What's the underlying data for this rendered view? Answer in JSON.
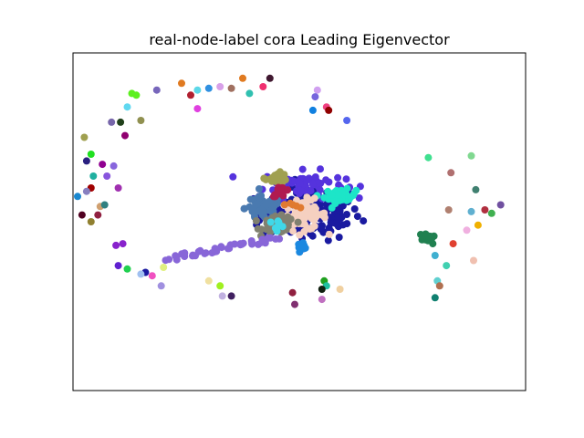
{
  "chart_data": {
    "type": "scatter",
    "title": "real-node-label cora Leading Eigenvector",
    "xlabel": "",
    "ylabel": "",
    "axes_ticks": "none",
    "grid": false,
    "legend": "none",
    "xlim": [
      -1.0,
      1.0
    ],
    "ylim": [
      -1.0,
      1.0
    ],
    "palette": {
      "navy": "#1a1aa0",
      "violet_blue": "#5533dd",
      "turquoise": "#1de5c8",
      "peach": "#f5d0c0",
      "steel_blue": "#4a7ab0",
      "gray": "#808070",
      "olive": "#a0a050",
      "lavender": "#8866d8",
      "crimson": "#b01a50",
      "orange": "#e07a30",
      "cyan": "#40d8e8",
      "azure": "#1a88e0"
    },
    "core_clusters": [
      {
        "color": "#1a1aa0",
        "center": [
          0.05,
          0.05
        ],
        "spread": [
          0.22,
          0.16
        ],
        "count": 170
      },
      {
        "color": "#5533dd",
        "center": [
          0.02,
          0.22
        ],
        "spread": [
          0.18,
          0.08
        ],
        "count": 60
      },
      {
        "color": "#1de5c8",
        "center": [
          0.18,
          0.15
        ],
        "spread": [
          0.07,
          0.04
        ],
        "count": 45
      },
      {
        "color": "#f5d0c0",
        "center": [
          0.02,
          0.04
        ],
        "spread": [
          0.1,
          0.09
        ],
        "count": 80
      },
      {
        "color": "#4a7ab0",
        "center": [
          -0.16,
          0.08
        ],
        "spread": [
          0.08,
          0.07
        ],
        "count": 60
      },
      {
        "color": "#808070",
        "center": [
          -0.09,
          -0.02
        ],
        "spread": [
          0.07,
          0.05
        ],
        "count": 55
      },
      {
        "color": "#a0a050",
        "center": [
          -0.1,
          0.26
        ],
        "spread": [
          0.05,
          0.03
        ],
        "count": 25
      },
      {
        "color": "#b01a50",
        "center": [
          -0.08,
          0.18
        ],
        "spread": [
          0.04,
          0.03
        ],
        "count": 15
      },
      {
        "color": "#40d8e8",
        "center": [
          -0.1,
          -0.02
        ],
        "spread": [
          0.04,
          0.03
        ],
        "count": 10
      },
      {
        "color": "#1a88e0",
        "center": [
          0.01,
          -0.14
        ],
        "spread": [
          0.03,
          0.02
        ],
        "count": 8
      },
      {
        "color": "#e07a30",
        "center": [
          -0.03,
          0.1
        ],
        "spread": [
          0.03,
          0.02
        ],
        "count": 5
      }
    ],
    "tail": {
      "color": "#8866d8",
      "from": [
        -0.58,
        -0.22
      ],
      "to": [
        -0.1,
        -0.1
      ],
      "count": 40
    },
    "outliers": [
      {
        "x": -0.74,
        "y": 0.76,
        "color": "#5cf01e"
      },
      {
        "x": -0.72,
        "y": 0.75,
        "color": "#5cf01e"
      },
      {
        "x": -0.63,
        "y": 0.78,
        "color": "#7766bb"
      },
      {
        "x": -0.52,
        "y": 0.82,
        "color": "#e07a20"
      },
      {
        "x": -0.48,
        "y": 0.75,
        "color": "#b02030"
      },
      {
        "x": -0.45,
        "y": 0.78,
        "color": "#5cd8e8"
      },
      {
        "x": -0.4,
        "y": 0.79,
        "color": "#3090e0"
      },
      {
        "x": -0.35,
        "y": 0.8,
        "color": "#d8a0e8"
      },
      {
        "x": -0.3,
        "y": 0.79,
        "color": "#a07060"
      },
      {
        "x": -0.25,
        "y": 0.85,
        "color": "#e07a20"
      },
      {
        "x": -0.22,
        "y": 0.76,
        "color": "#30c0b0"
      },
      {
        "x": -0.16,
        "y": 0.8,
        "color": "#f03070"
      },
      {
        "x": -0.13,
        "y": 0.85,
        "color": "#401830"
      },
      {
        "x": -0.45,
        "y": 0.67,
        "color": "#e040e0"
      },
      {
        "x": 0.08,
        "y": 0.78,
        "color": "#d0a0f0"
      },
      {
        "x": 0.07,
        "y": 0.74,
        "color": "#7766dd"
      },
      {
        "x": 0.12,
        "y": 0.68,
        "color": "#f04080"
      },
      {
        "x": 0.13,
        "y": 0.66,
        "color": "#900000"
      },
      {
        "x": 0.06,
        "y": 0.66,
        "color": "#1080e0"
      },
      {
        "x": 0.21,
        "y": 0.6,
        "color": "#5566ee"
      },
      {
        "x": -0.83,
        "y": 0.59,
        "color": "#7766aa"
      },
      {
        "x": -0.79,
        "y": 0.59,
        "color": "#20401a"
      },
      {
        "x": -0.76,
        "y": 0.68,
        "color": "#60d8f0"
      },
      {
        "x": -0.7,
        "y": 0.6,
        "color": "#909050"
      },
      {
        "x": -0.77,
        "y": 0.51,
        "color": "#900070"
      },
      {
        "x": -0.95,
        "y": 0.5,
        "color": "#a0a050"
      },
      {
        "x": -0.94,
        "y": 0.36,
        "color": "#2a2080"
      },
      {
        "x": -0.92,
        "y": 0.4,
        "color": "#20e020"
      },
      {
        "x": -0.91,
        "y": 0.27,
        "color": "#20b0a0"
      },
      {
        "x": -0.87,
        "y": 0.34,
        "color": "#900090"
      },
      {
        "x": -0.82,
        "y": 0.33,
        "color": "#8866dd"
      },
      {
        "x": -0.85,
        "y": 0.27,
        "color": "#8855dd"
      },
      {
        "x": -0.8,
        "y": 0.2,
        "color": "#a030b0"
      },
      {
        "x": -0.92,
        "y": 0.2,
        "color": "#a00000"
      },
      {
        "x": -0.94,
        "y": 0.18,
        "color": "#8880c0"
      },
      {
        "x": -0.98,
        "y": 0.15,
        "color": "#1a88d0"
      },
      {
        "x": -0.88,
        "y": 0.09,
        "color": "#d0a070"
      },
      {
        "x": -0.86,
        "y": 0.1,
        "color": "#308080"
      },
      {
        "x": -0.96,
        "y": 0.04,
        "color": "#500020"
      },
      {
        "x": -0.89,
        "y": 0.04,
        "color": "#902040"
      },
      {
        "x": -0.92,
        "y": 0.0,
        "color": "#908030"
      },
      {
        "x": -0.81,
        "y": -0.14,
        "color": "#8822cc"
      },
      {
        "x": -0.78,
        "y": -0.13,
        "color": "#8822cc"
      },
      {
        "x": 0.57,
        "y": 0.38,
        "color": "#40e090"
      },
      {
        "x": 0.76,
        "y": 0.39,
        "color": "#80d890"
      },
      {
        "x": 0.67,
        "y": 0.29,
        "color": "#b07070"
      },
      {
        "x": 0.78,
        "y": 0.19,
        "color": "#408070"
      },
      {
        "x": 0.89,
        "y": 0.1,
        "color": "#7050a0"
      },
      {
        "x": 0.66,
        "y": 0.07,
        "color": "#b08070"
      },
      {
        "x": 0.76,
        "y": 0.06,
        "color": "#60b0d0"
      },
      {
        "x": 0.82,
        "y": 0.07,
        "color": "#b03040"
      },
      {
        "x": 0.85,
        "y": 0.05,
        "color": "#40b050"
      },
      {
        "x": 0.74,
        "y": -0.05,
        "color": "#f0b0e0"
      },
      {
        "x": 0.79,
        "y": -0.02,
        "color": "#f0b000"
      },
      {
        "x": 0.68,
        "y": -0.13,
        "color": "#e04030"
      },
      {
        "x": 0.59,
        "y": -0.13,
        "color": "#208050"
      },
      {
        "x": 0.6,
        "y": -0.2,
        "color": "#40b0d0"
      },
      {
        "x": 0.65,
        "y": -0.26,
        "color": "#40d0b0"
      },
      {
        "x": 0.77,
        "y": -0.23,
        "color": "#f0c0b0"
      },
      {
        "x": 0.61,
        "y": -0.35,
        "color": "#60d0d0"
      },
      {
        "x": 0.62,
        "y": -0.38,
        "color": "#b07050"
      },
      {
        "x": 0.6,
        "y": -0.45,
        "color": "#108070"
      },
      {
        "x": -0.68,
        "y": -0.3,
        "color": "#1a1aa0"
      },
      {
        "x": -0.65,
        "y": -0.32,
        "color": "#f050c0"
      },
      {
        "x": -0.76,
        "y": -0.28,
        "color": "#20d050"
      },
      {
        "x": -0.7,
        "y": -0.31,
        "color": "#a0c0f0"
      },
      {
        "x": -0.8,
        "y": -0.26,
        "color": "#6020d0"
      },
      {
        "x": -0.6,
        "y": -0.27,
        "color": "#e0f080"
      },
      {
        "x": -0.61,
        "y": -0.38,
        "color": "#a090e0"
      },
      {
        "x": -0.4,
        "y": -0.35,
        "color": "#f0e0a0"
      },
      {
        "x": -0.35,
        "y": -0.38,
        "color": "#a0f020"
      },
      {
        "x": -0.34,
        "y": -0.44,
        "color": "#c0b0e0"
      },
      {
        "x": -0.3,
        "y": -0.44,
        "color": "#402060"
      },
      {
        "x": 0.11,
        "y": -0.35,
        "color": "#20a020"
      },
      {
        "x": 0.12,
        "y": -0.38,
        "color": "#20c0a0"
      },
      {
        "x": 0.1,
        "y": -0.4,
        "color": "#102010"
      },
      {
        "x": 0.18,
        "y": -0.4,
        "color": "#f0d0a0"
      },
      {
        "x": 0.1,
        "y": -0.46,
        "color": "#c070c0"
      },
      {
        "x": -0.03,
        "y": -0.42,
        "color": "#902040"
      },
      {
        "x": -0.02,
        "y": -0.49,
        "color": "#803070"
      }
    ],
    "outlier_cluster": {
      "color": "#208050",
      "center": [
        0.56,
        -0.09
      ],
      "spread": [
        0.03,
        0.02
      ],
      "count": 15
    }
  }
}
